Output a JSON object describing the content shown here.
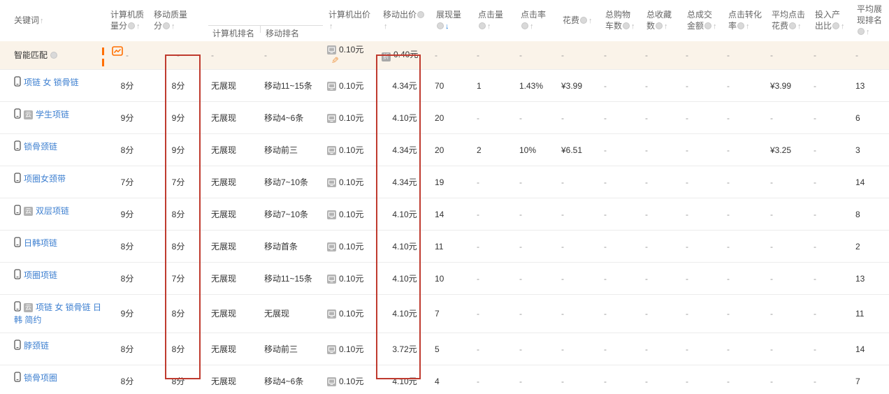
{
  "colors": {
    "accent_orange": "#ff6f00",
    "link_blue": "#3d7fd0",
    "annotation_red": "#bf3a2e",
    "sort_active_blue": "#1f7bd9",
    "smart_row_bg": "#faf3e9"
  },
  "table": {
    "tag_badge": "云",
    "fold_badge": "折",
    "columns": [
      {
        "label": "关键词",
        "help": false,
        "sort": "asc"
      },
      {
        "label": "计算机质量分",
        "help": true,
        "sort": "asc"
      },
      {
        "label": "移动质量分",
        "help": true,
        "sort": "asc"
      },
      {
        "label": "计算机排名",
        "help": false,
        "sort": null
      },
      {
        "label": "移动排名",
        "help": false,
        "sort": null
      },
      {
        "label": "计算机出价",
        "help": false,
        "sort": "asc"
      },
      {
        "label": "移动出价",
        "help": true,
        "sort": "asc"
      },
      {
        "label": "展现量",
        "help": true,
        "sort": "desc_active"
      },
      {
        "label": "点击量",
        "help": true,
        "sort": "asc"
      },
      {
        "label": "点击率",
        "help": true,
        "sort": "asc"
      },
      {
        "label": "花费",
        "help": true,
        "sort": "asc"
      },
      {
        "label": "总购物车数",
        "help": true,
        "sort": "asc"
      },
      {
        "label": "总收藏数",
        "help": true,
        "sort": "asc"
      },
      {
        "label": "总成交金额",
        "help": true,
        "sort": "asc"
      },
      {
        "label": "点击转化率",
        "help": true,
        "sort": "asc"
      },
      {
        "label": "平均点击花费",
        "help": true,
        "sort": "asc"
      },
      {
        "label": "投入产出比",
        "help": true,
        "sort": "asc"
      },
      {
        "label": "平均展现排名",
        "help": true,
        "sort": "asc"
      }
    ],
    "smart_row": {
      "label": "智能匹配",
      "values": [
        "-",
        "-",
        "-",
        "-",
        "0.10元",
        "0.40元",
        "-",
        "-",
        "-",
        "-",
        "-",
        "-",
        "-",
        "-",
        "-",
        "-",
        "-"
      ]
    },
    "rows": [
      {
        "keyword": "项链 女 锁骨链",
        "tag": false,
        "values": [
          "8分",
          "8分",
          "无展现",
          "移动11~15条",
          "0.10元",
          "4.34元",
          "70",
          "1",
          "1.43%",
          "¥3.99",
          "-",
          "-",
          "-",
          "-",
          "¥3.99",
          "-",
          "13"
        ]
      },
      {
        "keyword": "学生项链",
        "tag": true,
        "values": [
          "9分",
          "9分",
          "无展现",
          "移动4~6条",
          "0.10元",
          "4.10元",
          "20",
          "-",
          "-",
          "-",
          "-",
          "-",
          "-",
          "-",
          "-",
          "-",
          "6"
        ]
      },
      {
        "keyword": "锁骨颈链",
        "tag": false,
        "values": [
          "8分",
          "9分",
          "无展现",
          "移动前三",
          "0.10元",
          "4.34元",
          "20",
          "2",
          "10%",
          "¥6.51",
          "-",
          "-",
          "-",
          "-",
          "¥3.25",
          "-",
          "3"
        ]
      },
      {
        "keyword": "项圈女颈带",
        "tag": false,
        "values": [
          "7分",
          "7分",
          "无展现",
          "移动7~10条",
          "0.10元",
          "4.34元",
          "19",
          "-",
          "-",
          "-",
          "-",
          "-",
          "-",
          "-",
          "-",
          "-",
          "14"
        ]
      },
      {
        "keyword": "双层项链",
        "tag": true,
        "values": [
          "9分",
          "8分",
          "无展现",
          "移动7~10条",
          "0.10元",
          "4.10元",
          "14",
          "-",
          "-",
          "-",
          "-",
          "-",
          "-",
          "-",
          "-",
          "-",
          "8"
        ]
      },
      {
        "keyword": "日韩项链",
        "tag": false,
        "values": [
          "8分",
          "8分",
          "无展现",
          "移动首条",
          "0.10元",
          "4.10元",
          "11",
          "-",
          "-",
          "-",
          "-",
          "-",
          "-",
          "-",
          "-",
          "-",
          "2"
        ]
      },
      {
        "keyword": "项圈项链",
        "tag": false,
        "values": [
          "8分",
          "7分",
          "无展现",
          "移动11~15条",
          "0.10元",
          "4.10元",
          "10",
          "-",
          "-",
          "-",
          "-",
          "-",
          "-",
          "-",
          "-",
          "-",
          "13"
        ]
      },
      {
        "keyword": "项链 女 锁骨链 日韩 简约",
        "tag": true,
        "values": [
          "9分",
          "8分",
          "无展现",
          "无展现",
          "0.10元",
          "4.10元",
          "7",
          "-",
          "-",
          "-",
          "-",
          "-",
          "-",
          "-",
          "-",
          "-",
          "11"
        ]
      },
      {
        "keyword": "脖颈链",
        "tag": false,
        "values": [
          "8分",
          "8分",
          "无展现",
          "移动前三",
          "0.10元",
          "3.72元",
          "5",
          "-",
          "-",
          "-",
          "-",
          "-",
          "-",
          "-",
          "-",
          "-",
          "14"
        ]
      },
      {
        "keyword": "锁骨项圈",
        "tag": false,
        "values": [
          "8分",
          "8分",
          "无展现",
          "移动4~6条",
          "0.10元",
          "4.10元",
          "4",
          "-",
          "-",
          "-",
          "-",
          "-",
          "-",
          "-",
          "-",
          "-",
          "7"
        ]
      }
    ]
  }
}
